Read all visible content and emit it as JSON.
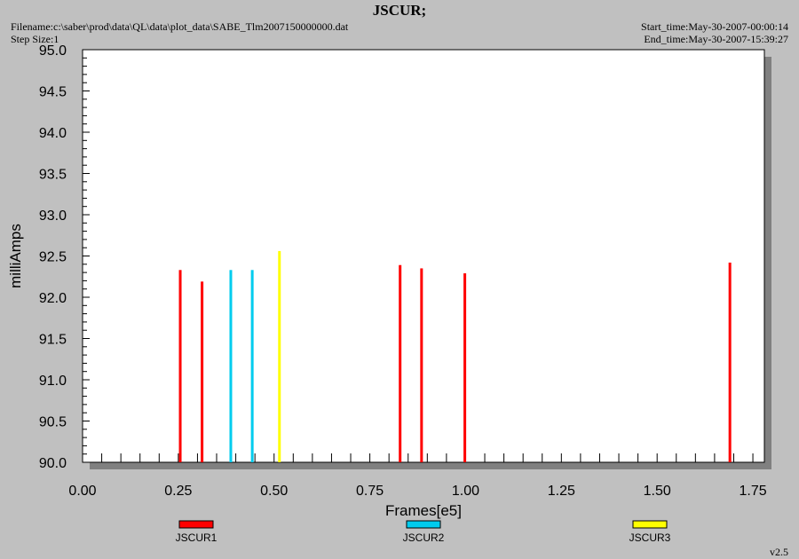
{
  "header": {
    "title": "JSCUR;",
    "filename": "Filename:c:\\saber\\prod\\data\\QL\\data\\plot_data\\SABE_Tlm2007150000000.dat",
    "step_size": "Step Size:1",
    "start_time": "Start_time:May-30-2007-00:00:14",
    "end_time": "End_time:May-30-2007-15:39:27"
  },
  "footer": {
    "version": "v2.5"
  },
  "chart_data": {
    "type": "bar",
    "xlabel": "Frames[e5]",
    "ylabel": "milliAmps",
    "xlim": [
      0.0,
      1.78
    ],
    "ylim": [
      90.0,
      95.0
    ],
    "x_ticks": [
      "0.00",
      "0.25",
      "0.50",
      "0.75",
      "1.00",
      "1.25",
      "1.50",
      "1.75"
    ],
    "y_ticks": [
      "90.0",
      "90.5",
      "91.0",
      "91.5",
      "92.0",
      "92.5",
      "93.0",
      "93.5",
      "94.0",
      "94.5",
      "95.0"
    ],
    "grid": false,
    "legend_position": "bottom",
    "series": [
      {
        "name": "JSCUR1",
        "color": "#ff0000",
        "points": [
          {
            "x": 0.255,
            "y": 92.33
          },
          {
            "x": 0.312,
            "y": 92.19
          },
          {
            "x": 0.829,
            "y": 92.39
          },
          {
            "x": 0.885,
            "y": 92.35
          },
          {
            "x": 0.998,
            "y": 92.29
          },
          {
            "x": 1.69,
            "y": 92.42
          }
        ]
      },
      {
        "name": "JSCUR2",
        "color": "#00ccee",
        "points": [
          {
            "x": 0.387,
            "y": 92.33
          },
          {
            "x": 0.443,
            "y": 92.33
          }
        ]
      },
      {
        "name": "JSCUR3",
        "color": "#ffff00",
        "points": [
          {
            "x": 0.514,
            "y": 92.56
          }
        ]
      }
    ]
  }
}
